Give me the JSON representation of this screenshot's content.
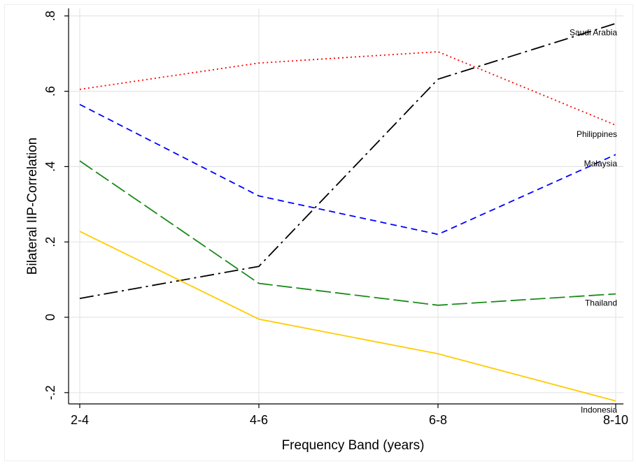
{
  "chart_data": {
    "type": "line",
    "title": "",
    "xlabel": "Frequency Band (years)",
    "ylabel": "Bilateral IIP-Correlation",
    "categories": [
      "2-4",
      "4-6",
      "6-8",
      "8-10"
    ],
    "ylim": [
      -0.23,
      0.82
    ],
    "yticks": [
      -0.2,
      0,
      0.2,
      0.4,
      0.6,
      0.8
    ],
    "ytick_labels": [
      "-.2",
      "0",
      ".2",
      ".4",
      ".6",
      ".8"
    ],
    "grid": true,
    "series": [
      {
        "name": "Saudi Arabia",
        "values": [
          0.05,
          0.135,
          0.632,
          0.78
        ],
        "color": "#000000",
        "dash": "longdash-dot"
      },
      {
        "name": "Philippines",
        "values": [
          0.605,
          0.675,
          0.705,
          0.51
        ],
        "color": "#ff0000",
        "dash": "dot"
      },
      {
        "name": "Malaysia",
        "values": [
          0.565,
          0.322,
          0.22,
          0.432
        ],
        "color": "#0000ff",
        "dash": "dash"
      },
      {
        "name": "Thailand",
        "values": [
          0.415,
          0.09,
          0.032,
          0.062
        ],
        "color": "#1a8a1a",
        "dash": "longdash"
      },
      {
        "name": "Indonesia",
        "values": [
          0.228,
          -0.005,
          -0.097,
          -0.222
        ],
        "color": "#ffcc00",
        "dash": "solid"
      }
    ]
  }
}
